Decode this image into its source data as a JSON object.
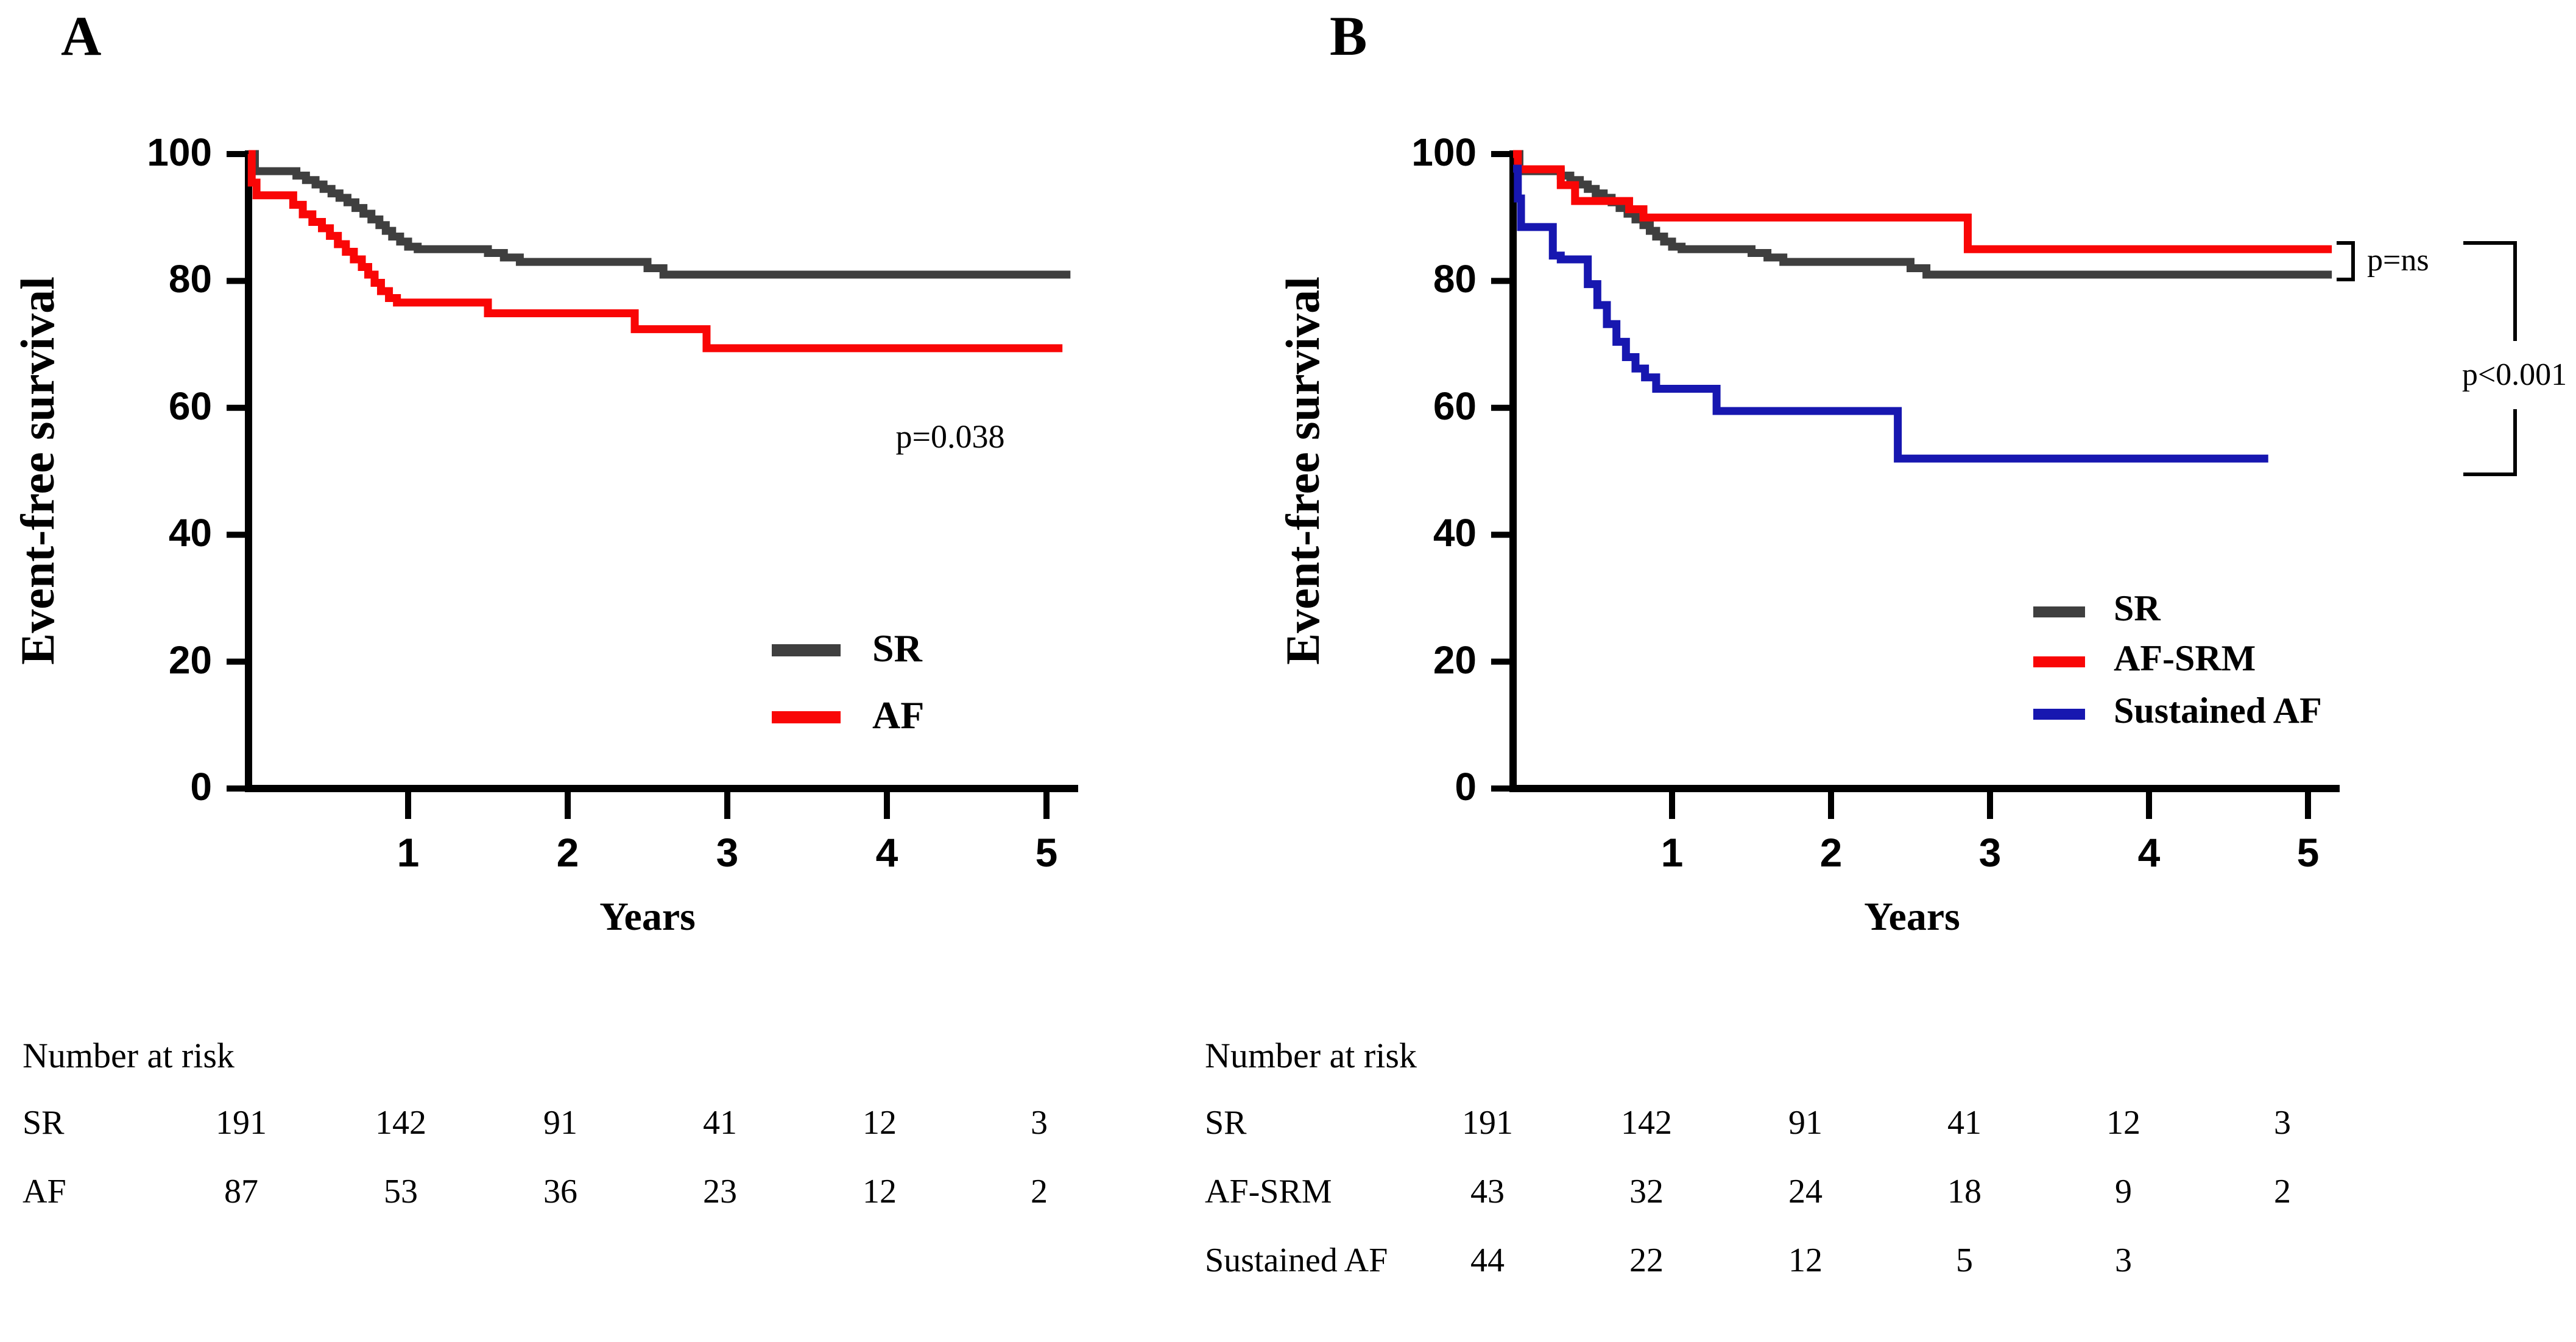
{
  "figure": {
    "background": "#ffffff",
    "panels": [
      {
        "label": "A",
        "y_axis_title": "Event-free survival",
        "x_axis_title": "Years",
        "y_tick_labels": [
          "0",
          "20",
          "40",
          "60",
          "80",
          "100"
        ],
        "x_tick_labels": [
          "1",
          "2",
          "3",
          "4",
          "5"
        ],
        "annotations": [
          {
            "text": "p=0.038"
          }
        ],
        "legend": [
          {
            "label": "SR",
            "color": "#3f3f3f"
          },
          {
            "label": "AF",
            "color": "#f90606"
          }
        ],
        "number_at_risk": {
          "title": "Number at risk",
          "rows": [
            {
              "label": "SR",
              "counts": [
                "191",
                "142",
                "91",
                "41",
                "12",
                "3"
              ]
            },
            {
              "label": "AF",
              "counts": [
                "87",
                "53",
                "36",
                "23",
                "12",
                "2"
              ]
            }
          ]
        }
      },
      {
        "label": "B",
        "y_axis_title": "Event-free survival",
        "x_axis_title": "Years",
        "y_tick_labels": [
          "0",
          "20",
          "40",
          "60",
          "80",
          "100"
        ],
        "x_tick_labels": [
          "1",
          "2",
          "3",
          "4",
          "5"
        ],
        "annotations": [
          {
            "text": "p=ns"
          },
          {
            "text": "p<0.001"
          }
        ],
        "legend": [
          {
            "label": "SR",
            "color": "#3f3f3f"
          },
          {
            "label": "AF-SRM",
            "color": "#f90606"
          },
          {
            "label": "Sustained AF",
            "color": "#1717b0"
          }
        ],
        "number_at_risk": {
          "title": "Number at risk",
          "rows": [
            {
              "label": "SR",
              "counts": [
                "191",
                "142",
                "91",
                "41",
                "12",
                "3"
              ]
            },
            {
              "label": "AF-SRM",
              "counts": [
                "43",
                "32",
                "24",
                "18",
                "9",
                "2"
              ]
            },
            {
              "label": "Sustained AF",
              "counts": [
                "44",
                "22",
                "12",
                "5",
                "3",
                ""
              ]
            }
          ]
        }
      }
    ]
  },
  "chart_data": [
    {
      "type": "line",
      "subtype": "kaplan-meier-step",
      "title": "",
      "xlabel": "Years",
      "ylabel": "Event-free survival",
      "xlim": [
        0,
        5.2
      ],
      "ylim": [
        0,
        100
      ],
      "xticks": [
        1,
        2,
        3,
        4,
        5
      ],
      "yticks": [
        0,
        20,
        40,
        60,
        80,
        100
      ],
      "grid": false,
      "legend_position": "lower right",
      "annotations": [
        {
          "text": "p=0.038",
          "x": 4.4,
          "y": 55
        }
      ],
      "series": [
        {
          "name": "SR",
          "color": "#3f3f3f",
          "points": [
            [
              0,
              100
            ],
            [
              0.04,
              97.3
            ],
            [
              0.3,
              96.6
            ],
            [
              0.36,
              95.9
            ],
            [
              0.42,
              95.2
            ],
            [
              0.47,
              94.5
            ],
            [
              0.52,
              93.8
            ],
            [
              0.57,
              93.1
            ],
            [
              0.62,
              92.4
            ],
            [
              0.67,
              91.5
            ],
            [
              0.72,
              90.6
            ],
            [
              0.77,
              89.7
            ],
            [
              0.82,
              88.8
            ],
            [
              0.86,
              87.9
            ],
            [
              0.9,
              87.0
            ],
            [
              0.95,
              86.2
            ],
            [
              1.0,
              85.4
            ],
            [
              1.06,
              85.0
            ],
            [
              1.5,
              84.4
            ],
            [
              1.6,
              83.7
            ],
            [
              1.7,
              83.0
            ],
            [
              2.5,
              82.0
            ],
            [
              2.6,
              81.0
            ],
            [
              5.15,
              81.0
            ]
          ]
        },
        {
          "name": "AF",
          "color": "#f90606",
          "points": [
            [
              0,
              100
            ],
            [
              0.02,
              95.5
            ],
            [
              0.05,
              93.5
            ],
            [
              0.28,
              92.0
            ],
            [
              0.34,
              90.5
            ],
            [
              0.4,
              89.3
            ],
            [
              0.46,
              88.3
            ],
            [
              0.51,
              87.1
            ],
            [
              0.56,
              85.8
            ],
            [
              0.61,
              84.6
            ],
            [
              0.66,
              83.4
            ],
            [
              0.71,
              82.2
            ],
            [
              0.75,
              81.0
            ],
            [
              0.79,
              79.7
            ],
            [
              0.83,
              78.4
            ],
            [
              0.88,
              77.3
            ],
            [
              0.93,
              76.6
            ],
            [
              1.5,
              74.9
            ],
            [
              2.42,
              72.4
            ],
            [
              2.87,
              69.4
            ],
            [
              5.1,
              69.4
            ]
          ]
        }
      ],
      "number_at_risk": {
        "SR": [
          191,
          142,
          91,
          41,
          12,
          3
        ],
        "AF": [
          87,
          53,
          36,
          23,
          12,
          2
        ]
      }
    },
    {
      "type": "line",
      "subtype": "kaplan-meier-step",
      "title": "",
      "xlabel": "Years",
      "ylabel": "Event-free survival",
      "xlim": [
        0,
        5.2
      ],
      "ylim": [
        0,
        100
      ],
      "xticks": [
        1,
        2,
        3,
        4,
        5
      ],
      "yticks": [
        0,
        20,
        40,
        60,
        80,
        100
      ],
      "grid": false,
      "legend_position": "lower right",
      "annotations": [
        {
          "text": "p=ns",
          "x": 5.5,
          "y": 83
        },
        {
          "text": "p<0.001",
          "x": 6.3,
          "y": 57
        }
      ],
      "series": [
        {
          "name": "SR",
          "color": "#3f3f3f",
          "points": [
            [
              0,
              100
            ],
            [
              0.04,
              97.3
            ],
            [
              0.3,
              96.6
            ],
            [
              0.36,
              95.9
            ],
            [
              0.42,
              95.2
            ],
            [
              0.47,
              94.5
            ],
            [
              0.52,
              93.8
            ],
            [
              0.57,
              93.1
            ],
            [
              0.62,
              92.4
            ],
            [
              0.67,
              91.5
            ],
            [
              0.72,
              90.6
            ],
            [
              0.77,
              89.7
            ],
            [
              0.82,
              88.8
            ],
            [
              0.86,
              87.9
            ],
            [
              0.9,
              87.0
            ],
            [
              0.95,
              86.2
            ],
            [
              1.0,
              85.4
            ],
            [
              1.06,
              85.0
            ],
            [
              1.5,
              84.4
            ],
            [
              1.6,
              83.7
            ],
            [
              1.7,
              83.0
            ],
            [
              2.5,
              82.0
            ],
            [
              2.6,
              81.0
            ],
            [
              5.15,
              81.0
            ]
          ]
        },
        {
          "name": "AF-SRM",
          "color": "#f90606",
          "points": [
            [
              0,
              100
            ],
            [
              0.03,
              97.6
            ],
            [
              0.3,
              95.1
            ],
            [
              0.39,
              92.6
            ],
            [
              0.73,
              91.3
            ],
            [
              0.82,
              90.0
            ],
            [
              2.86,
              85.0
            ],
            [
              5.15,
              85.0
            ]
          ]
        },
        {
          "name": "Sustained AF",
          "color": "#1717b0",
          "points": [
            [
              0,
              97.7
            ],
            [
              0.03,
              93.0
            ],
            [
              0.05,
              88.5
            ],
            [
              0.25,
              84.0
            ],
            [
              0.3,
              83.4
            ],
            [
              0.47,
              79.5
            ],
            [
              0.53,
              76.2
            ],
            [
              0.59,
              73.2
            ],
            [
              0.65,
              70.4
            ],
            [
              0.71,
              68.0
            ],
            [
              0.77,
              66.2
            ],
            [
              0.83,
              64.8
            ],
            [
              0.9,
              63.0
            ],
            [
              1.28,
              59.5
            ],
            [
              2.42,
              52.0
            ],
            [
              4.75,
              52.0
            ]
          ]
        }
      ],
      "number_at_risk": {
        "SR": [
          191,
          142,
          91,
          41,
          12,
          3
        ],
        "AF-SRM": [
          43,
          32,
          24,
          18,
          9,
          2
        ],
        "Sustained AF": [
          44,
          22,
          12,
          5,
          3
        ]
      }
    }
  ]
}
